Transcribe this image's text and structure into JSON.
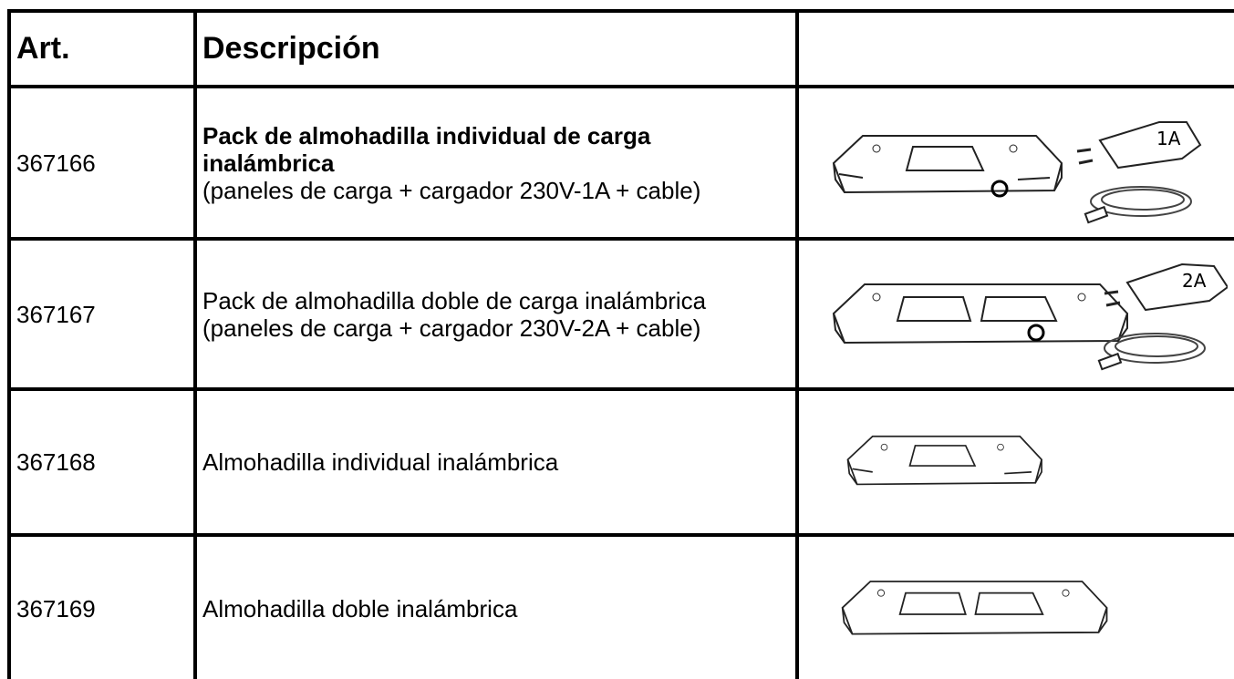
{
  "table": {
    "header": {
      "art": "Art.",
      "description": "Descripción"
    },
    "rows": [
      {
        "art": "367166",
        "title": "Pack de almohadilla individual de carga inalámbrica",
        "detail": "(paneles de carga + cargador 230V-1A + cable)",
        "charger_label": "1A"
      },
      {
        "art": "367167",
        "title": "Pack de almohadilla doble de carga inalámbrica",
        "detail": "(paneles de carga + cargador 230V-2A + cable)",
        "charger_label": "2A"
      },
      {
        "art": "367168",
        "title": "Almohadilla individual inalámbrica"
      },
      {
        "art": "367169",
        "title": "Almohadilla doble inalámbrica"
      }
    ]
  }
}
